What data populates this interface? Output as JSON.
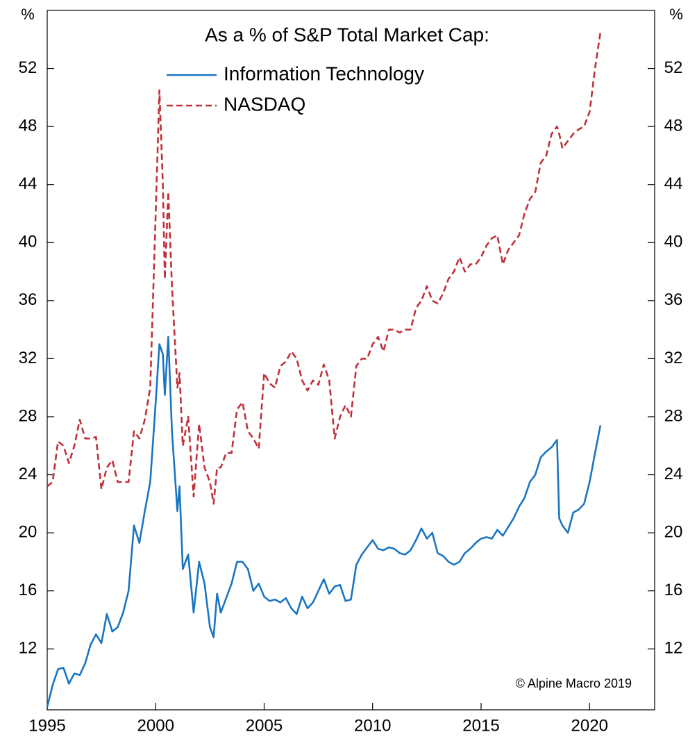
{
  "chart_data": {
    "type": "line",
    "title": "As a % of S&P Total Market Cap:",
    "ylabel": "%",
    "y2label": "%",
    "annotation": "© Alpine Macro 2019",
    "legend": "top",
    "grid": false,
    "xlim": [
      1995,
      2023
    ],
    "xticks": [
      1995,
      2000,
      2005,
      2010,
      2015,
      2020
    ],
    "ylim": [
      7.8,
      56
    ],
    "yticks": [
      12,
      16,
      20,
      24,
      28,
      32,
      36,
      40,
      44,
      48,
      52
    ],
    "y2lim": [
      7.8,
      56
    ],
    "y2ticks": [
      12,
      16,
      20,
      24,
      28,
      32,
      36,
      40,
      44,
      48,
      52
    ],
    "x": [
      1995.0,
      1995.25,
      1995.5,
      1995.75,
      1996.0,
      1996.25,
      1996.5,
      1996.75,
      1997.0,
      1997.25,
      1997.5,
      1997.75,
      1998.0,
      1998.25,
      1998.5,
      1998.75,
      1999.0,
      1999.25,
      1999.5,
      1999.75,
      2000.0,
      2000.17,
      2000.33,
      2000.42,
      2000.58,
      2000.75,
      2001.0,
      2001.1,
      2001.25,
      2001.5,
      2001.75,
      2002.0,
      2002.25,
      2002.5,
      2002.67,
      2002.83,
      2003.0,
      2003.25,
      2003.5,
      2003.75,
      2004.0,
      2004.25,
      2004.5,
      2004.75,
      2005.0,
      2005.25,
      2005.5,
      2005.75,
      2006.0,
      2006.25,
      2006.5,
      2006.75,
      2007.0,
      2007.25,
      2007.5,
      2007.75,
      2008.0,
      2008.25,
      2008.5,
      2008.75,
      2009.0,
      2009.25,
      2009.5,
      2009.75,
      2010.0,
      2010.25,
      2010.5,
      2010.75,
      2011.0,
      2011.25,
      2011.5,
      2011.75,
      2012.0,
      2012.25,
      2012.5,
      2012.75,
      2013.0,
      2013.25,
      2013.5,
      2013.75,
      2014.0,
      2014.25,
      2014.5,
      2014.75,
      2015.0,
      2015.25,
      2015.5,
      2015.75,
      2016.0,
      2016.25,
      2016.5,
      2016.75,
      2017.0,
      2017.25,
      2017.5,
      2017.75,
      2018.0,
      2018.25,
      2018.5,
      2018.6,
      2018.75,
      2019.0,
      2019.25,
      2019.5,
      2019.75,
      2020.0,
      2020.25,
      2020.5
    ],
    "series": [
      {
        "name": "Information Technology",
        "color": "#1a75c1",
        "style": "solid",
        "values": [
          8.0,
          9.5,
          10.6,
          10.7,
          9.6,
          10.3,
          10.2,
          11.0,
          12.3,
          13.0,
          12.4,
          14.4,
          13.2,
          13.5,
          14.5,
          16.0,
          20.5,
          19.3,
          21.5,
          23.5,
          29.0,
          33.0,
          32.3,
          29.5,
          33.5,
          27.0,
          21.5,
          23.2,
          17.5,
          18.5,
          14.5,
          18.0,
          16.5,
          13.5,
          12.8,
          15.8,
          14.5,
          15.5,
          16.5,
          18.0,
          18.0,
          17.5,
          16.0,
          16.5,
          15.6,
          15.3,
          15.4,
          15.2,
          15.5,
          14.8,
          14.4,
          15.6,
          14.8,
          15.2,
          16.0,
          16.8,
          15.8,
          16.3,
          16.4,
          15.3,
          15.4,
          17.8,
          18.5,
          19.0,
          19.5,
          18.9,
          18.8,
          19.0,
          18.9,
          18.6,
          18.5,
          18.8,
          19.5,
          20.3,
          19.6,
          20.0,
          18.6,
          18.4,
          18.0,
          17.8,
          18.0,
          18.6,
          18.9,
          19.3,
          19.6,
          19.7,
          19.6,
          20.2,
          19.8,
          20.4,
          21.0,
          21.8,
          22.4,
          23.5,
          24.0,
          25.2,
          25.6,
          25.9,
          26.4,
          21.0,
          20.5,
          20.0,
          21.4,
          21.6,
          22.0,
          23.5,
          25.5,
          27.4
        ]
      },
      {
        "name": "NASDAQ",
        "color": "#c0303a",
        "style": "dashed",
        "values": [
          23.2,
          23.5,
          26.3,
          26.0,
          24.8,
          26.0,
          27.8,
          26.5,
          26.5,
          26.6,
          23.0,
          24.5,
          25.0,
          23.5,
          23.5,
          23.5,
          27.0,
          26.5,
          27.8,
          30.0,
          42.0,
          50.5,
          44.0,
          37.5,
          43.5,
          37.0,
          30.0,
          31.0,
          26.0,
          28.0,
          22.5,
          27.5,
          24.5,
          23.5,
          22.0,
          24.5,
          24.5,
          25.5,
          25.5,
          28.5,
          29.0,
          27.0,
          26.5,
          25.8,
          31.0,
          30.3,
          30.0,
          31.5,
          31.8,
          32.5,
          32.0,
          30.5,
          29.8,
          30.5,
          30.2,
          31.6,
          30.5,
          26.5,
          28.0,
          28.8,
          28.0,
          31.5,
          32.0,
          32.0,
          33.0,
          33.5,
          32.5,
          34.0,
          34.0,
          33.8,
          34.0,
          34.0,
          35.5,
          36.0,
          37.0,
          36.0,
          35.8,
          36.5,
          37.5,
          38.0,
          39.0,
          38.0,
          38.5,
          38.5,
          39.0,
          39.8,
          40.3,
          40.5,
          38.5,
          39.5,
          40.0,
          40.5,
          42.0,
          43.0,
          43.5,
          45.5,
          46.0,
          47.5,
          48.0,
          47.5,
          46.5,
          47.0,
          47.5,
          47.8,
          48.0,
          49.0,
          52.0,
          54.5
        ]
      }
    ]
  }
}
